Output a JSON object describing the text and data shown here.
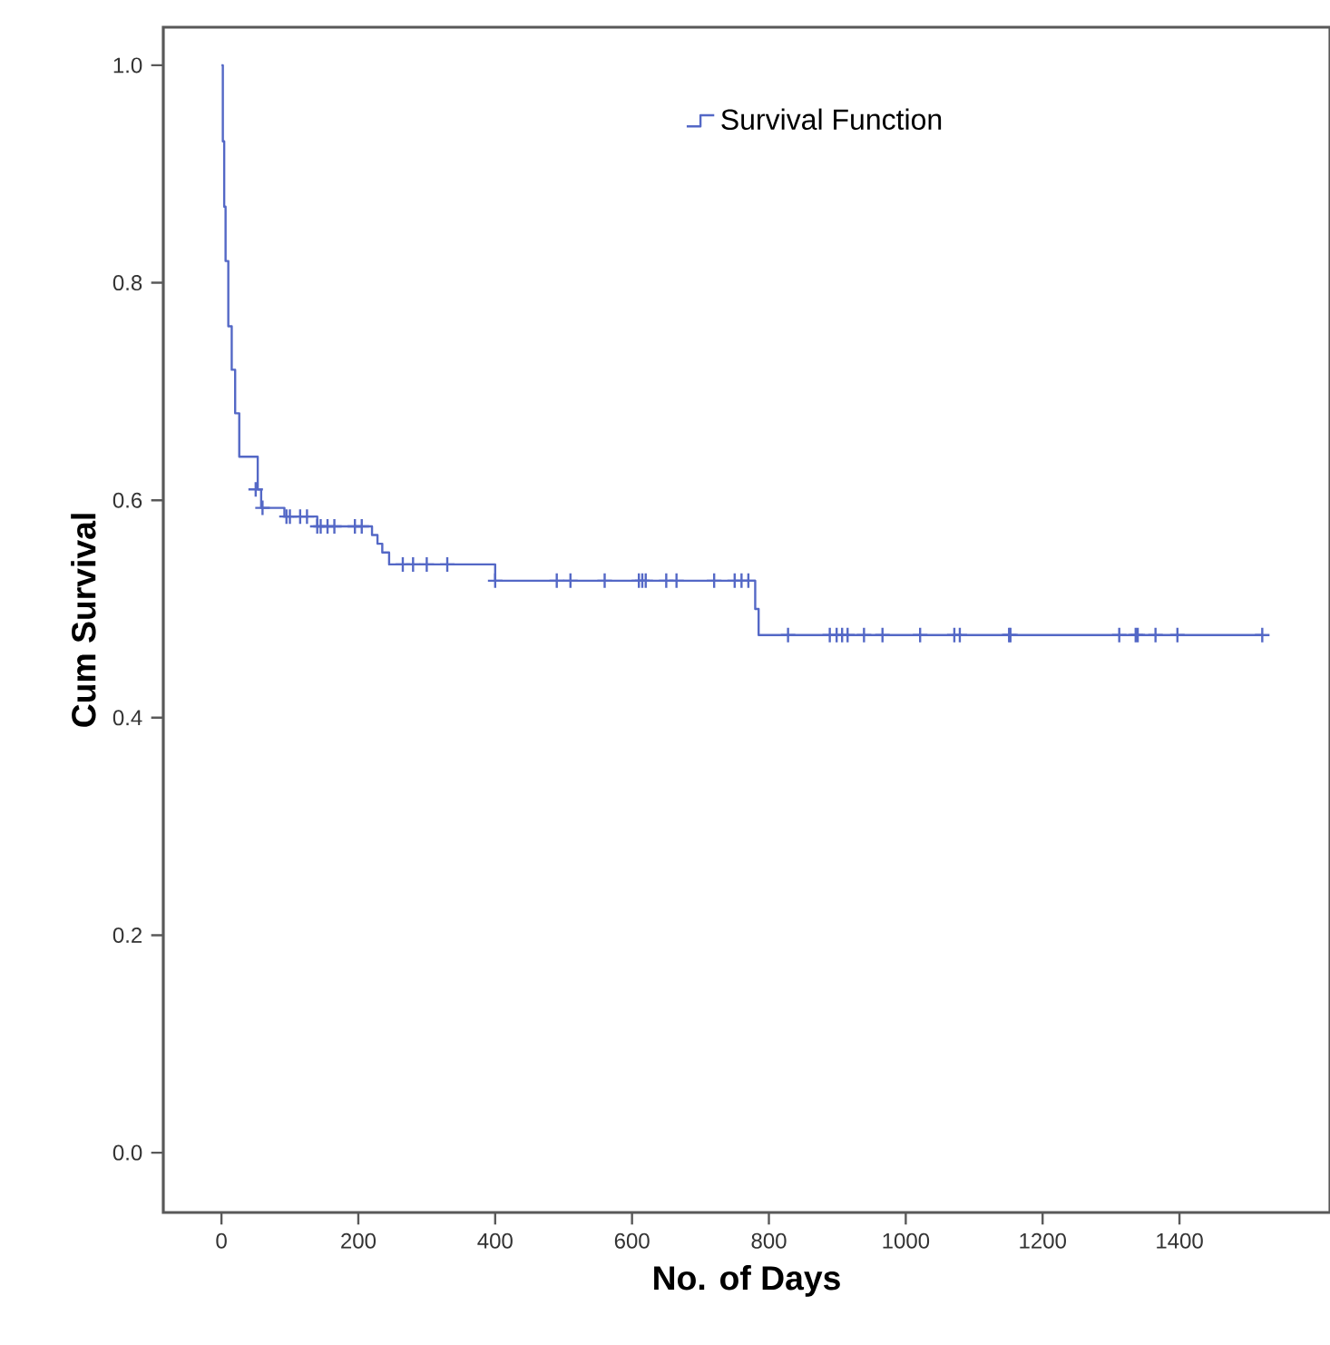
{
  "chart_data": {
    "type": "step",
    "xlabel": "No. of Days",
    "ylabel": "Cum Survival",
    "xlim": [
      -85,
      1620
    ],
    "ylim": [
      -0.055,
      1.035
    ],
    "xticks": [
      0,
      200,
      400,
      600,
      800,
      1000,
      1200,
      1400
    ],
    "yticks": [
      {
        "value": 0,
        "label": "0.0"
      },
      {
        "value": 0.2,
        "label": "0.2"
      },
      {
        "value": 0.4,
        "label": "0.4"
      },
      {
        "value": 0.6,
        "label": "0.6"
      },
      {
        "value": 0.8,
        "label": "0.8"
      },
      {
        "value": 1.0,
        "label": "1.0"
      }
    ],
    "grid": false,
    "legend": "top",
    "line_style": "solid",
    "series": [
      {
        "name": "Survival Function",
        "color": "#5468c6",
        "marker": "none",
        "x": [
          0,
          2,
          4,
          6,
          10,
          15,
          20,
          26,
          53,
          58,
          92,
          140,
          220,
          228,
          235,
          245,
          400,
          780,
          785,
          1521
        ],
        "values": [
          1.0,
          0.93,
          0.87,
          0.82,
          0.76,
          0.72,
          0.68,
          0.64,
          0.61,
          0.593,
          0.585,
          0.576,
          0.568,
          0.56,
          0.552,
          0.541,
          0.526,
          0.5,
          0.476,
          0.476
        ]
      },
      {
        "type": "scatter",
        "color": "#5468c6",
        "marker": "cross",
        "x": [
          50,
          60,
          95,
          100,
          115,
          125,
          140,
          145,
          155,
          165,
          195,
          205,
          265,
          280,
          300,
          330,
          400,
          490,
          510,
          560,
          610,
          615,
          620,
          650,
          665,
          720,
          750,
          760,
          770,
          828,
          889,
          899,
          907,
          915,
          939,
          966,
          1021,
          1071,
          1079,
          1151,
          1153,
          1312,
          1336,
          1339,
          1365,
          1397,
          1521
        ],
        "values": [
          0.61,
          0.593,
          0.585,
          0.585,
          0.585,
          0.585,
          0.576,
          0.576,
          0.576,
          0.576,
          0.576,
          0.576,
          0.541,
          0.541,
          0.541,
          0.541,
          0.526,
          0.526,
          0.526,
          0.526,
          0.526,
          0.526,
          0.526,
          0.526,
          0.526,
          0.526,
          0.526,
          0.526,
          0.526,
          0.476,
          0.476,
          0.476,
          0.476,
          0.476,
          0.476,
          0.476,
          0.476,
          0.476,
          0.476,
          0.476,
          0.476,
          0.476,
          0.476,
          0.476,
          0.476,
          0.476,
          0.476
        ]
      }
    ]
  }
}
